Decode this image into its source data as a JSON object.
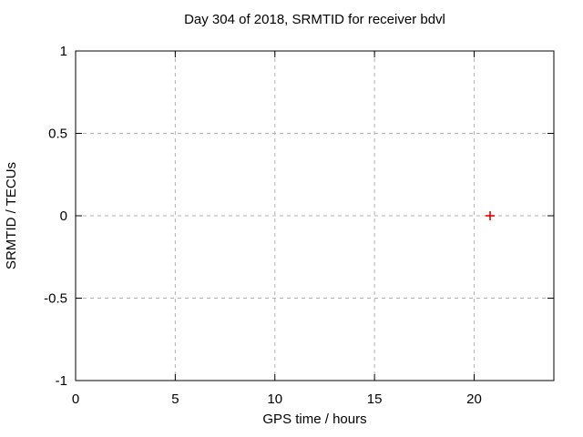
{
  "chart_data": {
    "type": "scatter",
    "title": "Day 304 of 2018, SRMTID for receiver bdvl",
    "xlabel": "GPS time / hours",
    "ylabel": "SRMTID / TECUs",
    "xlim": [
      0,
      24
    ],
    "ylim": [
      -1,
      1
    ],
    "xticks": [
      0,
      5,
      10,
      15,
      20
    ],
    "xtick_labels": [
      "0",
      "5",
      "10",
      "15",
      "20"
    ],
    "yticks": [
      1,
      0.5,
      0,
      -0.5,
      -1
    ],
    "ytick_labels": [
      "1",
      "0.5",
      "0",
      "-0.5",
      "-1"
    ],
    "grid": true,
    "legend_position": "none",
    "series": [
      {
        "name": "SRMTID",
        "marker": "plus",
        "color": "#e00000",
        "points": [
          {
            "x": 20.8,
            "y": 0.0
          }
        ]
      }
    ],
    "colors": {
      "background": "#ffffff",
      "border": "#000000",
      "grid": "#b2b2b2",
      "text": "#000000"
    }
  }
}
